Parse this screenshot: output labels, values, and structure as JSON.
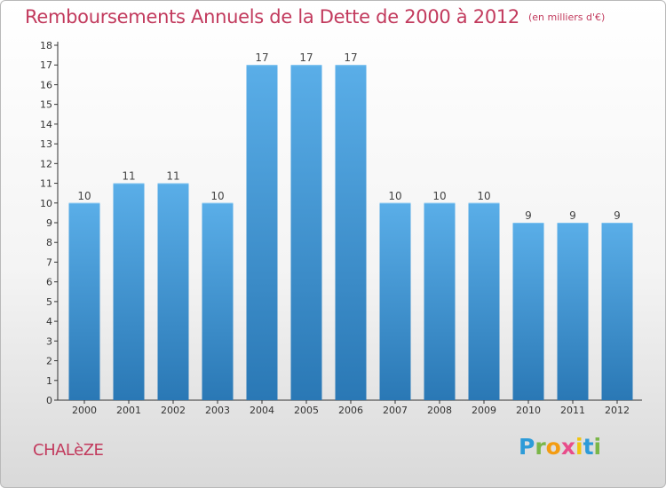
{
  "title": "Remboursements Annuels de la Dette de 2000 à 2012",
  "unit": "(en milliers d'€)",
  "commune": "CHALèZE",
  "logo": {
    "letters": [
      "P",
      "r",
      "o",
      "x",
      "i",
      "t",
      "i"
    ],
    "colors": [
      "#2d9bd8",
      "#7ab648",
      "#f39c12",
      "#e84d8a",
      "#f1c40f",
      "#2d9bd8",
      "#7ab648"
    ]
  },
  "colors": {
    "accent": "#c23a5d",
    "bar_top": "#5aaee8",
    "bar_bottom": "#2a78b5"
  },
  "chart_data": {
    "type": "bar",
    "categories": [
      "2000",
      "2001",
      "2002",
      "2003",
      "2004",
      "2005",
      "2006",
      "2007",
      "2008",
      "2009",
      "2010",
      "2011",
      "2012"
    ],
    "values": [
      10,
      11,
      11,
      10,
      17,
      17,
      17,
      10,
      10,
      10,
      9,
      9,
      9
    ],
    "yticks": [
      0,
      1,
      2,
      3,
      4,
      5,
      6,
      7,
      8,
      9,
      10,
      11,
      12,
      13,
      14,
      15,
      16,
      17,
      18
    ],
    "ylim": [
      0,
      18
    ],
    "grid": false
  }
}
